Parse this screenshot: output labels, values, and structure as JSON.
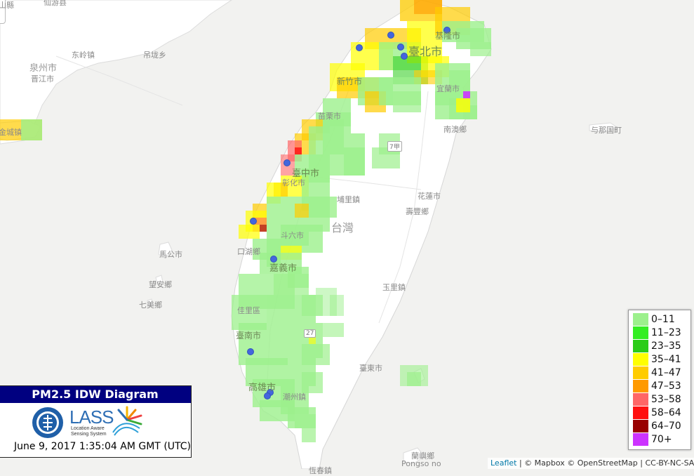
{
  "map": {
    "labels": {
      "county_edge": "山縣",
      "xianyou": "仙游县",
      "quanzhou": "泉州市",
      "jinjiang": "晋江市",
      "dongling": "东岭镇",
      "jincheng": "金城镇",
      "xinkeng": "吊垅乡",
      "taipei": "臺北市",
      "keelung": "基隆市",
      "hsinchu": "新竹市",
      "miaoli": "苗栗市",
      "yilan": "宜蘭市",
      "nanao": "南澳鄉",
      "yonaguni": "与那国町",
      "taichung": "臺中市",
      "changhua": "彰化市",
      "puli": "埔里鎮",
      "hualien": "花蓮市",
      "shoufeng": "壽豐鄉",
      "taiwan": "台灣",
      "douliu": "斗六市",
      "kouhu": "口湖鄉",
      "magong": "馬公市",
      "chiayi": "嘉義市",
      "wangan": "望安鄉",
      "qimei": "七美鄉",
      "yuli": "玉里鎮",
      "jiali": "佳里區",
      "tainan": "臺南市",
      "taitung": "臺東市",
      "kaohsiung": "高雄市",
      "chaozhou": "潮州鎮",
      "lanyu": "蘭嶼鄉",
      "pongso": "Pongso no",
      "hengchun": "恆春鎮",
      "shield_7a": "7甲",
      "shield_27": "27"
    },
    "legend": [
      {
        "label": "0–11",
        "color": "#9cf08c"
      },
      {
        "label": "11–23",
        "color": "#33ee22"
      },
      {
        "label": "23–35",
        "color": "#2acc18"
      },
      {
        "label": "35–41",
        "color": "#ffff00"
      },
      {
        "label": "41–47",
        "color": "#ffcc00"
      },
      {
        "label": "47–53",
        "color": "#ff9a00"
      },
      {
        "label": "53–58",
        "color": "#ff6666"
      },
      {
        "label": "58–64",
        "color": "#ff1010"
      },
      {
        "label": "64–70",
        "color": "#990000"
      },
      {
        "label": "70+",
        "color": "#cc33ff"
      }
    ]
  },
  "titlebox": {
    "title": "PM2.5 IDW Diagram",
    "lass": "LASS",
    "lass_sub_1": "Location Aware",
    "lass_sub_2": "Sensing System",
    "timestamp": "June 9, 2017 1:35:04 AM GMT (UTC)"
  },
  "attribution": {
    "leaflet": "Leaflet",
    "rest": " | © Mapbox © OpenStreetMap | CC-BY-NC-SA"
  },
  "colors": {
    "sea": "#f2f2f0",
    "land": "#ffffff",
    "marker": "#4466dd",
    "title_bg": "#000080"
  }
}
